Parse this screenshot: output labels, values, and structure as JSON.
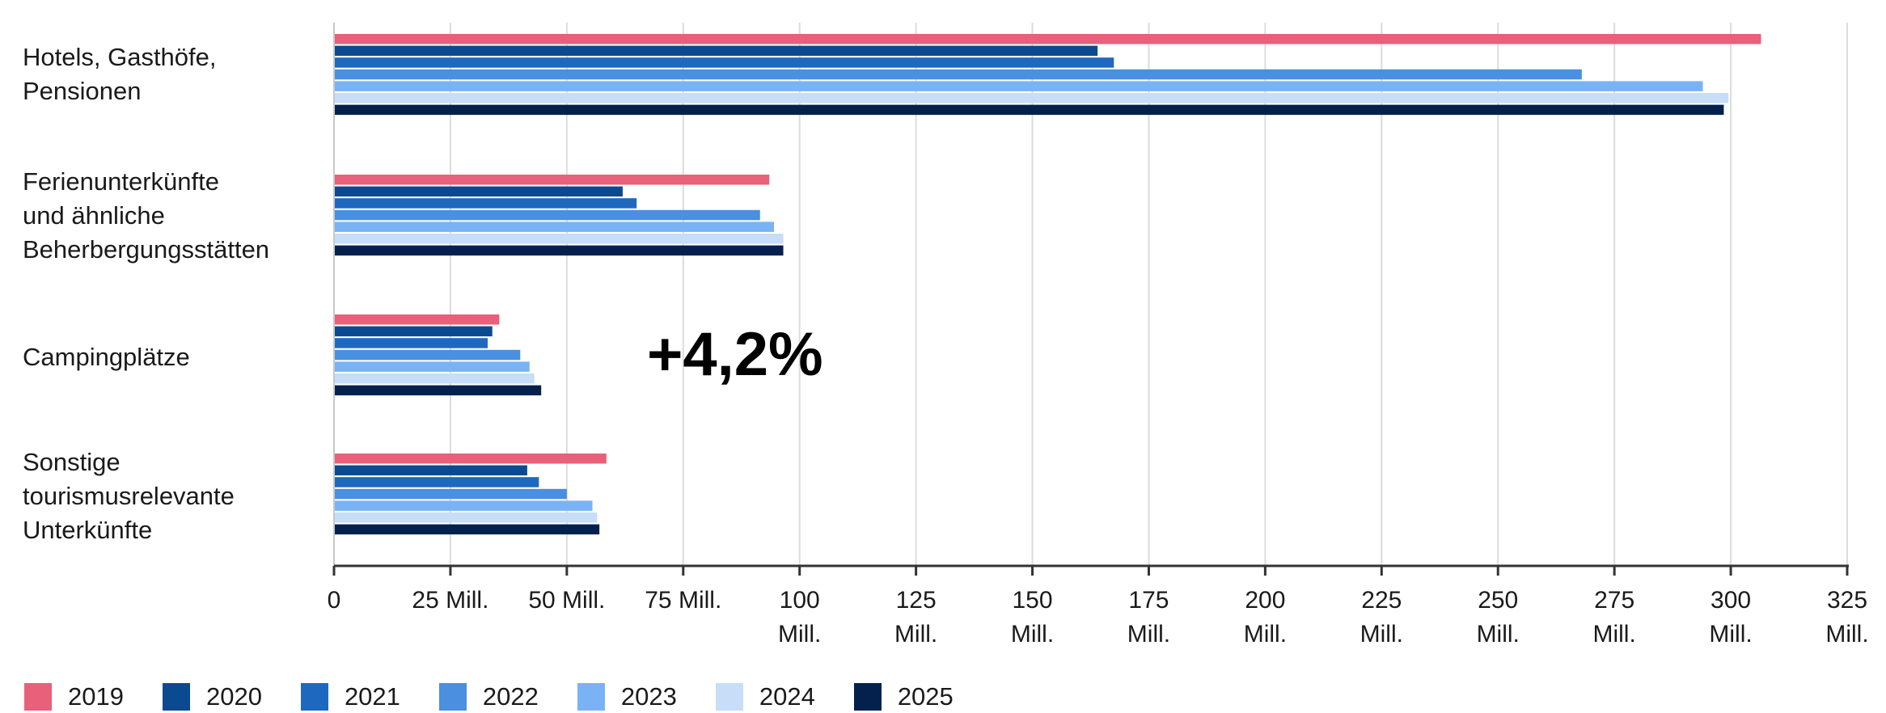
{
  "chart_data": {
    "type": "bar",
    "orientation": "horizontal",
    "categories": [
      "Hotels, Gasthöfe,\nPensionen",
      "Ferienunterkünfte\nund ähnliche\nBeherbergungsstätten",
      "Campingplätze",
      "Sonstige\ntourismusrelevante\nUnterkünfte"
    ],
    "series": [
      {
        "name": "2019",
        "color": "#e8607a",
        "values": [
          306.5,
          93.5,
          35.5,
          58.5
        ]
      },
      {
        "name": "2020",
        "color": "#0b4a91",
        "values": [
          164,
          62,
          34,
          41.5
        ]
      },
      {
        "name": "2021",
        "color": "#1f68bf",
        "values": [
          167.5,
          65,
          33,
          44
        ]
      },
      {
        "name": "2022",
        "color": "#4a8fe0",
        "values": [
          268,
          91.5,
          40,
          50
        ]
      },
      {
        "name": "2023",
        "color": "#7ab3f5",
        "values": [
          294,
          94.5,
          42,
          55.5
        ]
      },
      {
        "name": "2024",
        "color": "#c7ddf8",
        "values": [
          299.5,
          96.5,
          43,
          56.5
        ]
      },
      {
        "name": "2025",
        "color": "#04214d",
        "values": [
          298.5,
          96.5,
          44.5,
          57
        ]
      }
    ],
    "xlim": [
      0,
      325
    ],
    "x_ticks": [
      {
        "value": 0,
        "label": "0"
      },
      {
        "value": 25,
        "label": "25 Mill."
      },
      {
        "value": 50,
        "label": "50 Mill."
      },
      {
        "value": 75,
        "label": "75 Mill."
      },
      {
        "value": 100,
        "label": "100\nMill."
      },
      {
        "value": 125,
        "label": "125\nMill."
      },
      {
        "value": 150,
        "label": "150\nMill."
      },
      {
        "value": 175,
        "label": "175\nMill."
      },
      {
        "value": 200,
        "label": "200\nMill."
      },
      {
        "value": 225,
        "label": "225\nMill."
      },
      {
        "value": 250,
        "label": "250\nMill."
      },
      {
        "value": 275,
        "label": "275\nMill."
      },
      {
        "value": 300,
        "label": "300\nMill."
      },
      {
        "value": 325,
        "label": "325\nMill."
      }
    ],
    "grid": true,
    "legend_position": "bottom",
    "annotation": "+4,2%"
  }
}
